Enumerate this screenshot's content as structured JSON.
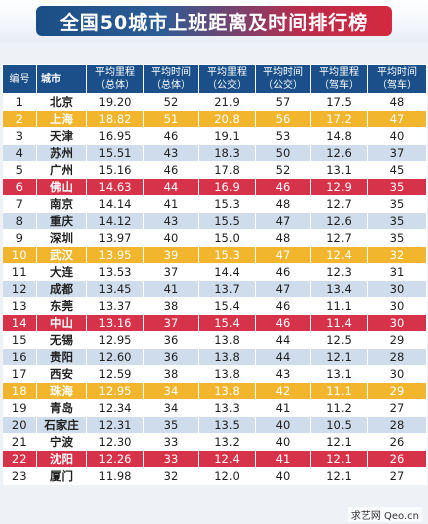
{
  "title": "全国50城市上班距离及时间排行榜",
  "header": {
    "rank": "编号",
    "city": "城市",
    "cols": [
      {
        "top": "平均里程",
        "sub": "（总体）"
      },
      {
        "top": "平均时间",
        "sub": "（总体）"
      },
      {
        "top": "平均里程",
        "sub": "（公交）"
      },
      {
        "top": "平均时间",
        "sub": "（公交）"
      },
      {
        "top": "平均里程",
        "sub": "（驾车）"
      },
      {
        "top": "平均时间",
        "sub": "（驾车）"
      }
    ]
  },
  "rows": [
    {
      "rank": "1",
      "city": "北京",
      "v": [
        "19.20",
        "52",
        "21.9",
        "57",
        "17.5",
        "48"
      ]
    },
    {
      "rank": "2",
      "city": "上海",
      "v": [
        "18.82",
        "51",
        "20.8",
        "56",
        "17.2",
        "47"
      ]
    },
    {
      "rank": "3",
      "city": "天津",
      "v": [
        "16.95",
        "46",
        "19.1",
        "53",
        "14.8",
        "40"
      ]
    },
    {
      "rank": "4",
      "city": "苏州",
      "v": [
        "15.51",
        "43",
        "18.3",
        "50",
        "12.6",
        "37"
      ]
    },
    {
      "rank": "5",
      "city": "广州",
      "v": [
        "15.16",
        "46",
        "17.8",
        "52",
        "13.1",
        "45"
      ]
    },
    {
      "rank": "6",
      "city": "佛山",
      "v": [
        "14.63",
        "44",
        "16.9",
        "46",
        "12.9",
        "35"
      ]
    },
    {
      "rank": "7",
      "city": "南京",
      "v": [
        "14.14",
        "41",
        "15.3",
        "48",
        "12.7",
        "35"
      ]
    },
    {
      "rank": "8",
      "city": "重庆",
      "v": [
        "14.12",
        "43",
        "15.5",
        "47",
        "12.6",
        "35"
      ]
    },
    {
      "rank": "9",
      "city": "深圳",
      "v": [
        "13.97",
        "40",
        "15.0",
        "48",
        "12.7",
        "35"
      ]
    },
    {
      "rank": "10",
      "city": "武汉",
      "v": [
        "13.95",
        "39",
        "15.3",
        "47",
        "12.4",
        "32"
      ]
    },
    {
      "rank": "11",
      "city": "大连",
      "v": [
        "13.53",
        "37",
        "14.4",
        "46",
        "12.3",
        "31"
      ]
    },
    {
      "rank": "12",
      "city": "成都",
      "v": [
        "13.45",
        "41",
        "13.7",
        "47",
        "13.4",
        "30"
      ]
    },
    {
      "rank": "13",
      "city": "东莞",
      "v": [
        "13.37",
        "38",
        "15.4",
        "46",
        "11.1",
        "30"
      ]
    },
    {
      "rank": "14",
      "city": "中山",
      "v": [
        "13.16",
        "37",
        "15.4",
        "46",
        "11.4",
        "30"
      ]
    },
    {
      "rank": "15",
      "city": "无锡",
      "v": [
        "12.95",
        "36",
        "13.8",
        "44",
        "12.5",
        "29"
      ]
    },
    {
      "rank": "16",
      "city": "贵阳",
      "v": [
        "12.60",
        "36",
        "13.8",
        "44",
        "12.1",
        "28"
      ]
    },
    {
      "rank": "17",
      "city": "西安",
      "v": [
        "12.59",
        "38",
        "13.8",
        "43",
        "13.1",
        "30"
      ]
    },
    {
      "rank": "18",
      "city": "珠海",
      "v": [
        "12.95",
        "34",
        "13.8",
        "42",
        "11.1",
        "29"
      ]
    },
    {
      "rank": "19",
      "city": "青岛",
      "v": [
        "12.34",
        "34",
        "13.3",
        "41",
        "11.2",
        "27"
      ]
    },
    {
      "rank": "20",
      "city": "石家庄",
      "v": [
        "12.31",
        "35",
        "13.5",
        "40",
        "10.5",
        "28"
      ]
    },
    {
      "rank": "21",
      "city": "宁波",
      "v": [
        "12.30",
        "33",
        "13.2",
        "40",
        "12.1",
        "26"
      ]
    },
    {
      "rank": "22",
      "city": "沈阳",
      "v": [
        "12.26",
        "33",
        "12.4",
        "41",
        "12.1",
        "26"
      ]
    },
    {
      "rank": "23",
      "city": "厦门",
      "v": [
        "11.98",
        "32",
        "12.0",
        "40",
        "12.1",
        "27"
      ]
    }
  ],
  "colors": {
    "header": "#1a4f8a",
    "highlight_yellow": "#f2b62e",
    "highlight_red": "#d6334a",
    "stripe": "#cfdcec"
  },
  "watermark": "求艺网 Qeo.cn"
}
